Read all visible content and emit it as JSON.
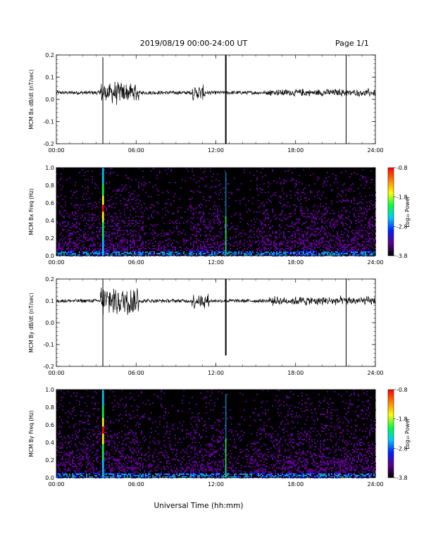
{
  "header": {
    "title": "2019/08/19  00:00-24:00 UT",
    "page": "Page 1/1"
  },
  "x_axis_label": "Universal Time (hh:mm)",
  "chart_data": [
    {
      "type": "line",
      "ylabel": "MCM Bx dB/dt (nT/sec)",
      "xlim": [
        0,
        24
      ],
      "ylim": [
        -0.2,
        0.2
      ],
      "xticks": [
        "00:00",
        "06:00",
        "12:00",
        "18:00",
        "24:00"
      ],
      "yticks": [
        "-0.2",
        "-0.1",
        "0.0",
        "0.1",
        "0.2"
      ],
      "baseline": 0.03,
      "spikes": [
        {
          "t": 3.5,
          "y": [
            -0.2,
            0.19
          ]
        },
        {
          "t": 12.75,
          "y": [
            -0.2,
            0.2
          ]
        },
        {
          "t": 21.8,
          "y": [
            -0.2,
            0.2
          ]
        }
      ],
      "bursts": [
        {
          "t0": 3.3,
          "t1": 6.2,
          "amp": 0.06
        },
        {
          "t0": 10.2,
          "t1": 11.2,
          "amp": 0.04
        },
        {
          "t0": 16.0,
          "t1": 24.0,
          "amp": 0.02
        }
      ]
    },
    {
      "type": "heatmap",
      "ylabel": "MCM Bx Freq (Hz)",
      "xlim": [
        0,
        24
      ],
      "ylim": [
        0,
        1.0
      ],
      "xticks": [
        "00:00",
        "06:00",
        "12:00",
        "18:00",
        "24:00"
      ],
      "yticks": [
        "0.0",
        "0.2",
        "0.4",
        "0.6",
        "0.8",
        "1.0"
      ],
      "colorbar": {
        "label": "Log₁₀ Power",
        "range": [
          -3.8,
          -0.8
        ],
        "ticks": [
          "-0.8",
          "-1.8",
          "-2.8",
          "-3.8"
        ]
      },
      "colors": [
        "#000000",
        "#5a008a",
        "#0020ff",
        "#00c8ff",
        "#00ff40",
        "#ffff00",
        "#ff8000",
        "#ff0000"
      ],
      "bright_lines": [
        3.5,
        12.75
      ]
    },
    {
      "type": "line",
      "ylabel": "MCM By dB/dt (nT/sec)",
      "xlim": [
        0,
        24
      ],
      "ylim": [
        -0.2,
        0.2
      ],
      "xticks": [
        "00:00",
        "06:00",
        "12:00",
        "18:00",
        "24:00"
      ],
      "yticks": [
        "-0.2",
        "-0.1",
        "0.0",
        "0.1",
        "0.2"
      ],
      "baseline": 0.1,
      "spikes": [
        {
          "t": 3.5,
          "y": [
            -0.2,
            0.2
          ]
        },
        {
          "t": 12.75,
          "y": [
            -0.15,
            0.2
          ]
        },
        {
          "t": 21.8,
          "y": [
            -0.2,
            0.2
          ]
        }
      ],
      "bursts": [
        {
          "t0": 3.3,
          "t1": 6.2,
          "amp": 0.09
        },
        {
          "t0": 10.2,
          "t1": 11.5,
          "amp": 0.04
        },
        {
          "t0": 16.0,
          "t1": 24.0,
          "amp": 0.025
        }
      ]
    },
    {
      "type": "heatmap",
      "ylabel": "MCM By Freq (Hz)",
      "xlim": [
        0,
        24
      ],
      "ylim": [
        0,
        1.0
      ],
      "xticks": [
        "00:00",
        "06:00",
        "12:00",
        "18:00",
        "24:00"
      ],
      "yticks": [
        "0.0",
        "0.2",
        "0.4",
        "0.6",
        "0.8",
        "1.0"
      ],
      "colorbar": {
        "label": "Log₁₀ Power",
        "range": [
          -3.8,
          -0.8
        ],
        "ticks": [
          "-0.8",
          "-1.8",
          "-2.8",
          "-3.8"
        ]
      },
      "colors": [
        "#000000",
        "#5a008a",
        "#0020ff",
        "#00c8ff",
        "#00ff40",
        "#ffff00",
        "#ff8000",
        "#ff0000"
      ],
      "bright_lines": [
        3.5,
        12.75
      ]
    }
  ]
}
